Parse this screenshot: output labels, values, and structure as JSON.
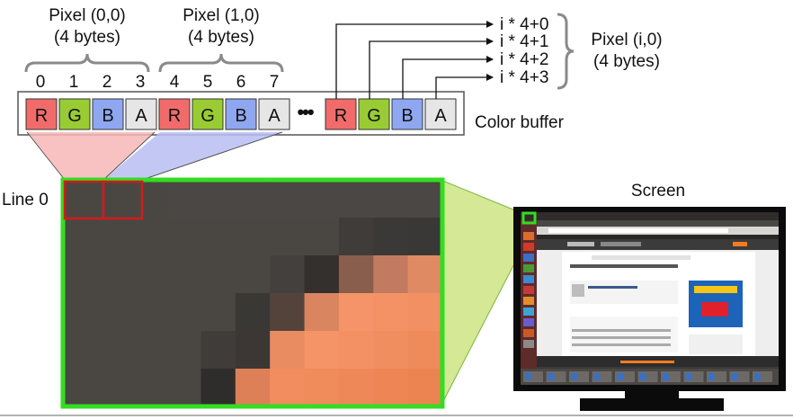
{
  "pixel_labels": [
    {
      "title": "Pixel (0,0)",
      "size": "(4 bytes)"
    },
    {
      "title": "Pixel (1,0)",
      "size": "(4 bytes)"
    },
    {
      "title": "Pixel (i,0)",
      "size": "(4 bytes)"
    }
  ],
  "byte_indices": [
    "0",
    "1",
    "2",
    "3",
    "4",
    "5",
    "6",
    "7"
  ],
  "channels": [
    {
      "letter": "R",
      "color": "#f26b6b"
    },
    {
      "letter": "G",
      "color": "#99cc33"
    },
    {
      "letter": "B",
      "color": "#8fa7f0"
    },
    {
      "letter": "A",
      "color": "#e6e6e6"
    }
  ],
  "ellipsis": "•••",
  "offsets": [
    "i * 4+0",
    "i * 4+1",
    "i * 4+2",
    "i * 4+3"
  ],
  "color_buffer_label": "Color buffer",
  "line_label": "Line 0",
  "screen_label": "Screen",
  "zoom_grid_colors": [
    [
      "#4a4743",
      "#4a4743",
      "#4a4743",
      "#4b4744",
      "#4b4744",
      "#4b4744",
      "#4b4744",
      "#4b4744",
      "#4b4744",
      "#4b4744",
      "#4b4744"
    ],
    [
      "#4a4743",
      "#4a4743",
      "#4a4743",
      "#4a4743",
      "#4a4743",
      "#4a4743",
      "#4a4743",
      "#4a4743",
      "#3f3c39",
      "#3b3937",
      "#3a3836"
    ],
    [
      "#4a4743",
      "#4a4743",
      "#4a4743",
      "#4a4743",
      "#4a4743",
      "#4a4743",
      "#43403d",
      "#33302e",
      "#8a5e4d",
      "#c27a60",
      "#e08a63"
    ],
    [
      "#4a4743",
      "#4a4743",
      "#4a4743",
      "#4a4743",
      "#4a4743",
      "#3a3835",
      "#54433b",
      "#d88560",
      "#f59468",
      "#f49266",
      "#f29063"
    ],
    [
      "#4a4743",
      "#4a4743",
      "#4a4743",
      "#4a4743",
      "#3f3c3a",
      "#3c3734",
      "#e98c62",
      "#f59467",
      "#f39165",
      "#f18e60",
      "#ef8b5b"
    ],
    [
      "#4a4743",
      "#4a4743",
      "#4a4743",
      "#4a4743",
      "#2f2d2c",
      "#dd8057",
      "#f28d5f",
      "#f08b5c",
      "#ef8858",
      "#ed8654",
      "#ec8451"
    ]
  ],
  "browser": {
    "site": "Grooveshark",
    "heading": "Search Results / lloyd cole and the commotions",
    "artist_section": "Artist Matches",
    "artist_name": "Lloyd Cole and the Commotions",
    "songs_section": "Song Matches",
    "ad_headline": "Preço baixo e grandes ofertas!",
    "ad_brand": "BAI-BA"
  }
}
